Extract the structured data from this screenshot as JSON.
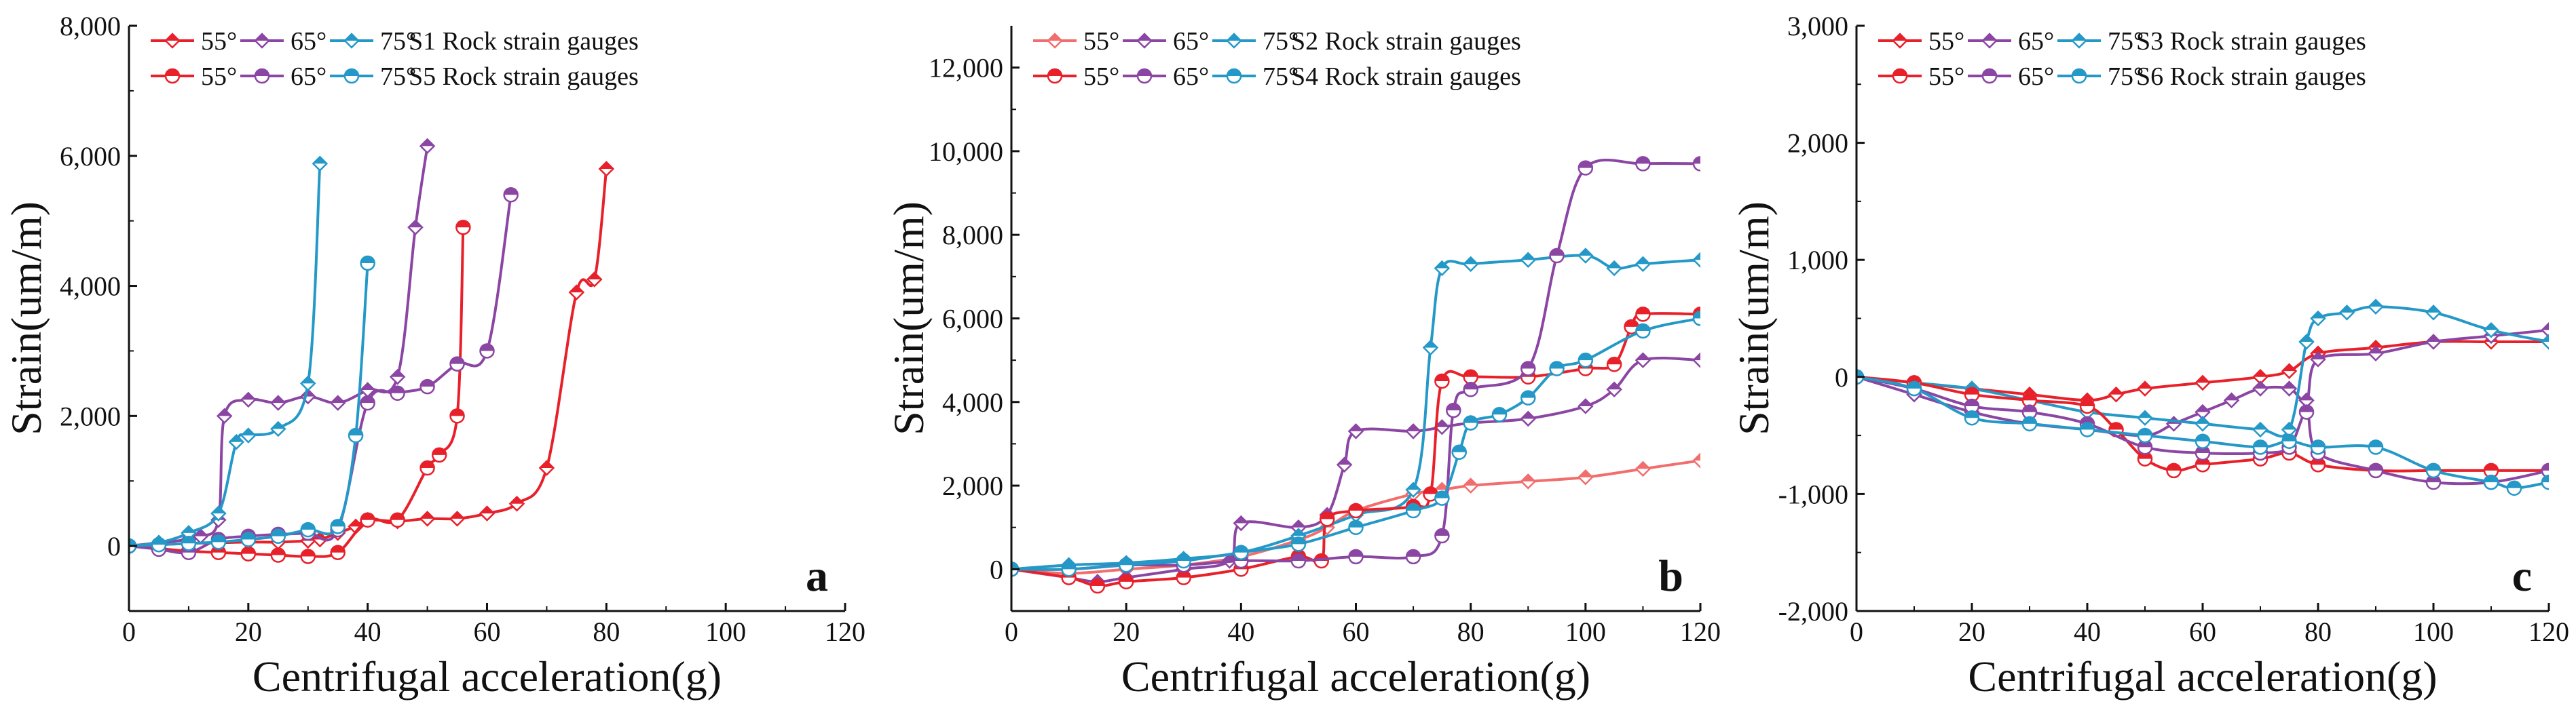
{
  "chart_data": [
    {
      "type": "line",
      "panel_label": "a",
      "xlabel": "Centrifugal acceleration(g)",
      "ylabel": "Strain(um/m)",
      "xlim": [
        0,
        120
      ],
      "ylim": [
        -1000,
        8000
      ],
      "xticks": [
        0,
        20,
        40,
        60,
        80,
        100,
        120
      ],
      "yticks": [
        0,
        2000,
        4000,
        6000,
        8000
      ],
      "ytick_labels": [
        "0",
        "2,000",
        "4,000",
        "6,000",
        "8,000"
      ],
      "legend": [
        {
          "labels": [
            "55°",
            "65°",
            "75°"
          ],
          "suffix": "S1 Rock strain gauges",
          "marker": "diamond"
        },
        {
          "labels": [
            "55°",
            "65°",
            "75°"
          ],
          "suffix": "S5 Rock strain gauges",
          "marker": "circle"
        }
      ],
      "series": [
        {
          "name": "S1 55°",
          "color": "#e8202a",
          "marker": "diamond",
          "x": [
            0,
            5,
            10,
            15,
            20,
            25,
            30,
            32,
            35,
            38,
            40,
            45,
            50,
            55,
            60,
            65,
            70,
            75,
            78,
            80
          ],
          "y": [
            0,
            20,
            40,
            50,
            60,
            60,
            80,
            100,
            200,
            300,
            400,
            380,
            420,
            420,
            500,
            650,
            1200,
            3900,
            4100,
            5800
          ]
        },
        {
          "name": "S1 65°",
          "color": "#8b45a3",
          "marker": "diamond",
          "x": [
            0,
            5,
            10,
            12,
            15,
            16,
            20,
            25,
            30,
            35,
            40,
            45,
            48,
            50
          ],
          "y": [
            0,
            50,
            100,
            150,
            400,
            2000,
            2250,
            2200,
            2300,
            2200,
            2400,
            2600,
            4900,
            6150
          ]
        },
        {
          "name": "S1 75°",
          "color": "#2499c8",
          "marker": "diamond",
          "x": [
            0,
            5,
            10,
            15,
            18,
            20,
            25,
            30,
            32
          ],
          "y": [
            0,
            50,
            200,
            500,
            1600,
            1700,
            1800,
            2500,
            5880
          ]
        },
        {
          "name": "S5 55°",
          "color": "#e8202a",
          "marker": "circle",
          "x": [
            0,
            5,
            10,
            15,
            20,
            25,
            30,
            35,
            40,
            45,
            50,
            52,
            55,
            56
          ],
          "y": [
            0,
            -40,
            -80,
            -100,
            -120,
            -140,
            -160,
            -100,
            400,
            400,
            1200,
            1400,
            2000,
            4900
          ]
        },
        {
          "name": "S5 65°",
          "color": "#8b45a3",
          "marker": "circle",
          "x": [
            0,
            5,
            10,
            15,
            20,
            25,
            30,
            35,
            40,
            45,
            50,
            55,
            60,
            64
          ],
          "y": [
            0,
            -50,
            -100,
            100,
            150,
            180,
            200,
            250,
            2200,
            2350,
            2450,
            2800,
            3000,
            5400
          ]
        },
        {
          "name": "S5 75°",
          "color": "#2499c8",
          "marker": "circle",
          "x": [
            0,
            5,
            10,
            15,
            20,
            25,
            30,
            35,
            38,
            40
          ],
          "y": [
            0,
            20,
            40,
            60,
            100,
            150,
            250,
            300,
            1700,
            4350
          ]
        }
      ]
    },
    {
      "type": "line",
      "panel_label": "b",
      "xlabel": "Centrifugal acceleration(g)",
      "ylabel": "Strain(um/m)",
      "xlim": [
        0,
        120
      ],
      "ylim": [
        -1000,
        13000
      ],
      "xticks": [
        0,
        20,
        40,
        60,
        80,
        100,
        120
      ],
      "yticks": [
        0,
        2000,
        4000,
        6000,
        8000,
        10000,
        12000
      ],
      "ytick_labels": [
        "0",
        "2,000",
        "4,000",
        "6,000",
        "8,000",
        "10,000",
        "12,000"
      ],
      "legend": [
        {
          "labels": [
            "55°",
            "65°",
            "75°"
          ],
          "suffix": "S2 Rock strain gauges",
          "marker": "diamond"
        },
        {
          "labels": [
            "55°",
            "65°",
            "75°"
          ],
          "suffix": "S4 Rock strain gauges",
          "marker": "circle"
        }
      ],
      "series": [
        {
          "name": "S2 55°",
          "color": "#f26d6d",
          "marker": "diamond",
          "x": [
            0,
            10,
            20,
            30,
            40,
            50,
            55,
            60,
            70,
            75,
            80,
            90,
            100,
            110,
            120
          ],
          "y": [
            0,
            -100,
            0,
            100,
            300,
            700,
            1000,
            1400,
            1800,
            1900,
            2000,
            2100,
            2200,
            2400,
            2600
          ]
        },
        {
          "name": "S2 65°",
          "color": "#8b45a3",
          "marker": "diamond",
          "x": [
            0,
            10,
            15,
            20,
            30,
            38,
            40,
            50,
            55,
            58,
            60,
            70,
            75,
            80,
            90,
            100,
            105,
            110,
            120
          ],
          "y": [
            0,
            -200,
            -300,
            -200,
            0,
            200,
            1100,
            1000,
            1300,
            2500,
            3300,
            3300,
            3400,
            3500,
            3600,
            3900,
            4300,
            5000,
            5000
          ]
        },
        {
          "name": "S2 75°",
          "color": "#2499c8",
          "marker": "diamond",
          "x": [
            0,
            10,
            20,
            30,
            40,
            50,
            60,
            70,
            73,
            75,
            80,
            90,
            100,
            105,
            110,
            120
          ],
          "y": [
            0,
            100,
            150,
            250,
            400,
            800,
            1300,
            1900,
            5300,
            7200,
            7300,
            7400,
            7500,
            7200,
            7300,
            7400
          ]
        },
        {
          "name": "S4 55°",
          "color": "#e8202a",
          "marker": "circle",
          "x": [
            0,
            10,
            15,
            20,
            30,
            40,
            50,
            54,
            55,
            60,
            70,
            73,
            75,
            80,
            90,
            100,
            105,
            108,
            110,
            120
          ],
          "y": [
            0,
            -200,
            -400,
            -300,
            -200,
            0,
            300,
            200,
            1200,
            1400,
            1500,
            1800,
            4500,
            4600,
            4600,
            4800,
            4900,
            5800,
            6100,
            6100
          ]
        },
        {
          "name": "S4 65°",
          "color": "#8b45a3",
          "marker": "circle",
          "x": [
            0,
            10,
            20,
            30,
            40,
            50,
            60,
            70,
            75,
            77,
            80,
            90,
            95,
            100,
            110,
            120
          ],
          "y": [
            0,
            0,
            100,
            100,
            200,
            200,
            300,
            300,
            800,
            3800,
            4300,
            4800,
            7500,
            9600,
            9700,
            9700
          ]
        },
        {
          "name": "S4 75°",
          "color": "#2499c8",
          "marker": "circle",
          "x": [
            0,
            10,
            20,
            30,
            40,
            50,
            60,
            70,
            75,
            78,
            80,
            85,
            90,
            95,
            100,
            110,
            120
          ],
          "y": [
            0,
            0,
            100,
            200,
            400,
            600,
            1000,
            1400,
            1700,
            2800,
            3500,
            3700,
            4100,
            4800,
            5000,
            5700,
            6000
          ]
        }
      ]
    },
    {
      "type": "line",
      "panel_label": "c",
      "xlabel": "Centrifugal acceleration(g)",
      "ylabel": "Strain(um/m)",
      "xlim": [
        0,
        120
      ],
      "ylim": [
        -2000,
        3000
      ],
      "xticks": [
        0,
        20,
        40,
        60,
        80,
        100,
        120
      ],
      "yticks": [
        -2000,
        -1000,
        0,
        1000,
        2000,
        3000
      ],
      "ytick_labels": [
        "-2,000",
        "-1,000",
        "0",
        "1,000",
        "2,000",
        "3,000"
      ],
      "legend": [
        {
          "labels": [
            "55°",
            "65°",
            "75°"
          ],
          "suffix": "S3 Rock strain gauges",
          "marker": "diamond"
        },
        {
          "labels": [
            "55°",
            "65°",
            "75°"
          ],
          "suffix": "S6 Rock strain gauges",
          "marker": "circle"
        }
      ],
      "series": [
        {
          "name": "S3 55°",
          "color": "#e8202a",
          "marker": "diamond",
          "x": [
            0,
            10,
            20,
            30,
            40,
            45,
            50,
            60,
            70,
            75,
            80,
            90,
            100,
            110,
            120
          ],
          "y": [
            0,
            -50,
            -100,
            -150,
            -200,
            -150,
            -100,
            -50,
            0,
            50,
            200,
            250,
            300,
            300,
            300
          ]
        },
        {
          "name": "S3 65°",
          "color": "#8b45a3",
          "marker": "diamond",
          "x": [
            0,
            10,
            20,
            30,
            40,
            50,
            55,
            60,
            65,
            70,
            75,
            78,
            80,
            90,
            100,
            110,
            120
          ],
          "y": [
            0,
            -150,
            -300,
            -400,
            -450,
            -500,
            -400,
            -300,
            -200,
            -100,
            -100,
            -200,
            150,
            200,
            300,
            350,
            400
          ]
        },
        {
          "name": "S3 75°",
          "color": "#2499c8",
          "marker": "diamond",
          "x": [
            0,
            10,
            20,
            30,
            40,
            50,
            60,
            70,
            75,
            78,
            80,
            85,
            90,
            100,
            110,
            120
          ],
          "y": [
            0,
            -50,
            -100,
            -200,
            -300,
            -350,
            -400,
            -450,
            -450,
            300,
            500,
            550,
            600,
            550,
            400,
            300
          ]
        },
        {
          "name": "S6 55°",
          "color": "#e8202a",
          "marker": "circle",
          "x": [
            0,
            10,
            20,
            30,
            40,
            45,
            50,
            55,
            60,
            70,
            75,
            80,
            90,
            100,
            110,
            120
          ],
          "y": [
            0,
            -50,
            -150,
            -200,
            -250,
            -450,
            -700,
            -800,
            -750,
            -700,
            -650,
            -750,
            -800,
            -800,
            -800,
            -800
          ]
        },
        {
          "name": "S6 65°",
          "color": "#8b45a3",
          "marker": "circle",
          "x": [
            0,
            10,
            20,
            30,
            40,
            50,
            60,
            70,
            75,
            78,
            80,
            90,
            100,
            110,
            120
          ],
          "y": [
            0,
            -100,
            -250,
            -300,
            -400,
            -600,
            -650,
            -650,
            -600,
            -300,
            -650,
            -800,
            -900,
            -900,
            -800
          ]
        },
        {
          "name": "S6 75°",
          "color": "#2499c8",
          "marker": "circle",
          "x": [
            0,
            10,
            20,
            30,
            40,
            50,
            60,
            70,
            75,
            80,
            90,
            100,
            110,
            114,
            120
          ],
          "y": [
            0,
            -100,
            -350,
            -400,
            -450,
            -500,
            -550,
            -600,
            -550,
            -600,
            -600,
            -800,
            -900,
            -950,
            -900
          ]
        }
      ]
    }
  ]
}
